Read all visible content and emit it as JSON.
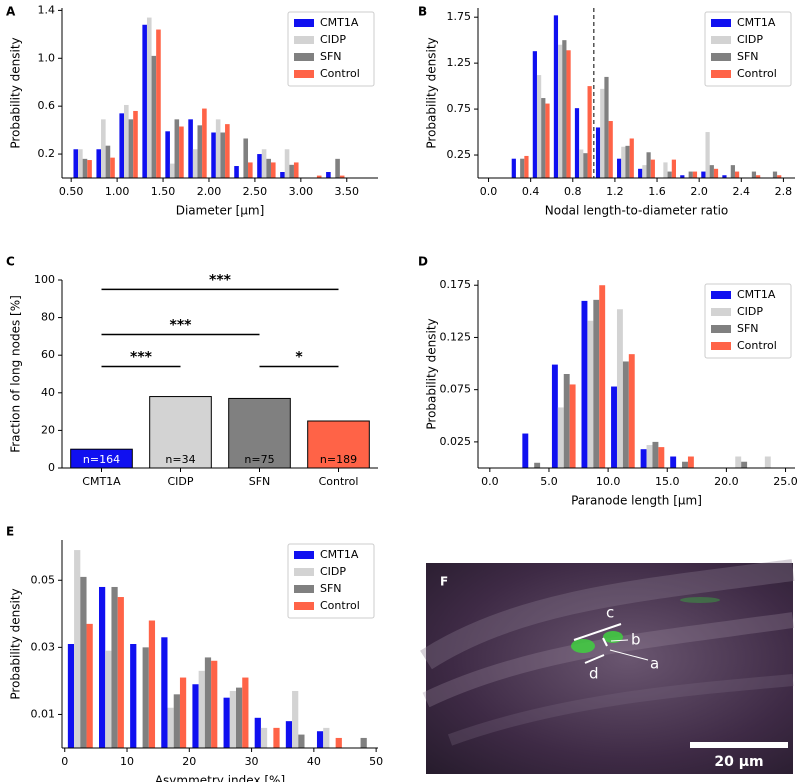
{
  "chart_data": [
    {
      "panel": "A",
      "type": "histogram",
      "xlabel": "Diameter [µm]",
      "ylabel": "Probability density",
      "legend": "upper right",
      "bins": [
        0.5,
        0.75,
        1.0,
        1.25,
        1.5,
        1.75,
        2.0,
        2.25,
        2.5,
        2.75,
        3.0,
        3.25,
        3.5
      ],
      "series": [
        {
          "name": "CMT1A",
          "color": "#1010f0",
          "values": [
            0.24,
            0.24,
            0.54,
            1.28,
            0.39,
            0.49,
            0.38,
            0.1,
            0.2,
            0.05,
            0.0,
            0.05
          ]
        },
        {
          "name": "CIDP",
          "color": "#d3d3d3",
          "values": [
            0.24,
            0.49,
            0.61,
            1.34,
            0.12,
            0.24,
            0.49,
            0.0,
            0.24,
            0.24,
            0.0,
            0.0
          ]
        },
        {
          "name": "SFN",
          "color": "#808080",
          "values": [
            0.16,
            0.27,
            0.49,
            1.02,
            0.49,
            0.44,
            0.38,
            0.33,
            0.16,
            0.11,
            0.0,
            0.16
          ]
        },
        {
          "name": "Control",
          "color": "#ff6347",
          "values": [
            0.15,
            0.17,
            0.56,
            1.24,
            0.43,
            0.58,
            0.45,
            0.13,
            0.13,
            0.13,
            0.02,
            0.02
          ]
        }
      ],
      "xlim": [
        0.4,
        3.84
      ],
      "ylim": [
        0,
        1.42
      ],
      "xticks": [
        {
          "value": 0.5,
          "label": "0.50"
        },
        {
          "value": 1.0,
          "label": "1.00"
        },
        {
          "value": 1.5,
          "label": "1.50"
        },
        {
          "value": 2.0,
          "label": "2.00"
        },
        {
          "value": 2.5,
          "label": "2.50"
        },
        {
          "value": 3.0,
          "label": "3.00"
        },
        {
          "value": 3.5,
          "label": "3.50"
        }
      ],
      "yticks": [
        0.2,
        0.6,
        {
          "value": 1.0,
          "label": "1.0"
        },
        1.4
      ]
    },
    {
      "panel": "B",
      "type": "histogram",
      "xlabel": "Nodal length-to-diameter ratio",
      "ylabel": "Probability density",
      "legend": "upper right",
      "vline": 1.0,
      "bins": [
        0.2,
        0.4,
        0.6,
        0.8,
        1.0,
        1.2,
        1.4,
        1.6,
        1.8,
        2.0,
        2.2,
        2.4,
        2.6,
        2.8
      ],
      "series": [
        {
          "name": "CMT1A",
          "color": "#1010f0",
          "values": [
            0.21,
            1.38,
            1.77,
            0.76,
            0.55,
            0.21,
            0.1,
            0.0,
            0.03,
            0.07,
            0.03,
            0.0,
            0.0
          ]
        },
        {
          "name": "CIDP",
          "color": "#d3d3d3",
          "values": [
            0.0,
            1.12,
            1.45,
            0.31,
            0.97,
            0.34,
            0.14,
            0.17,
            0.0,
            0.5,
            0.0,
            0.0,
            0.0
          ]
        },
        {
          "name": "SFN",
          "color": "#808080",
          "values": [
            0.21,
            0.87,
            1.5,
            0.27,
            1.1,
            0.35,
            0.28,
            0.07,
            0.07,
            0.14,
            0.14,
            0.07,
            0.07
          ]
        },
        {
          "name": "Control",
          "color": "#ff6347",
          "values": [
            0.24,
            0.81,
            1.39,
            1.0,
            0.62,
            0.43,
            0.2,
            0.2,
            0.07,
            0.1,
            0.07,
            0.03,
            0.03
          ]
        }
      ],
      "xlim": [
        -0.1,
        2.91
      ],
      "ylim": [
        0,
        1.85
      ],
      "xticks": [
        {
          "value": 0.0,
          "label": "0.0"
        },
        0.4,
        0.8,
        1.2,
        1.6,
        {
          "value": 2.0,
          "label": "2.0"
        },
        2.4,
        2.8
      ],
      "yticks": [
        0.25,
        0.75,
        1.25,
        1.75
      ]
    },
    {
      "panel": "C",
      "type": "bar",
      "ylabel": "Fraction of long nodes [%]",
      "categories": [
        "CMT1A",
        "CIDP",
        "SFN",
        "Control"
      ],
      "values": [
        10,
        38,
        37,
        25
      ],
      "colors": [
        "#1010f0",
        "#d3d3d3",
        "#808080",
        "#ff6347"
      ],
      "n_labels": [
        "n=164",
        "n=34",
        "n=75",
        "n=189"
      ],
      "annotations": [
        {
          "from": 0,
          "to": 3,
          "y": 95,
          "label": "***"
        },
        {
          "from": 0,
          "to": 2,
          "y": 71,
          "label": "***"
        },
        {
          "from": 0,
          "to": 1,
          "y": 54,
          "label": "***"
        },
        {
          "from": 2,
          "to": 3,
          "y": 54,
          "label": "*"
        }
      ],
      "ylim": [
        0,
        100
      ],
      "yticks": [
        0,
        20,
        40,
        60,
        80,
        100
      ]
    },
    {
      "panel": "D",
      "type": "histogram",
      "xlabel": "Paranode length [µm]",
      "ylabel": "Probability density",
      "legend": "upper right",
      "bins": [
        2.5,
        5.0,
        7.5,
        10.0,
        12.5,
        15.0,
        17.5,
        20.0,
        22.5,
        25.0
      ],
      "series": [
        {
          "name": "CMT1A",
          "color": "#1010f0",
          "values": [
            0.033,
            0.099,
            0.16,
            0.078,
            0.018,
            0.011,
            0.0,
            0.0,
            0.0
          ]
        },
        {
          "name": "CIDP",
          "color": "#d3d3d3",
          "values": [
            0.0,
            0.058,
            0.141,
            0.152,
            0.022,
            0.0,
            0.0,
            0.011,
            0.011
          ]
        },
        {
          "name": "SFN",
          "color": "#808080",
          "values": [
            0.005,
            0.09,
            0.161,
            0.102,
            0.025,
            0.006,
            0.0,
            0.006,
            0.0
          ]
        },
        {
          "name": "Control",
          "color": "#ff6347",
          "values": [
            0.0,
            0.08,
            0.175,
            0.109,
            0.02,
            0.011,
            0.0,
            0.0,
            0.0
          ]
        }
      ],
      "xlim": [
        -1.0,
        25.8
      ],
      "ylim": [
        0,
        0.18
      ],
      "xticks": [
        {
          "value": 0,
          "label": "0.0"
        },
        {
          "value": 5,
          "label": "5.0"
        },
        {
          "value": 10,
          "label": "10.0"
        },
        {
          "value": 15,
          "label": "15.0"
        },
        {
          "value": 20,
          "label": "20.0"
        },
        {
          "value": 25,
          "label": "25.0"
        }
      ],
      "yticks": [
        0.025,
        0.075,
        0.125,
        0.175
      ]
    },
    {
      "panel": "E",
      "type": "histogram",
      "xlabel": "Asymmetry index [%]",
      "ylabel": "Probability density",
      "legend": "upper right",
      "bins": [
        0,
        5,
        10,
        15,
        20,
        25,
        30,
        35,
        40,
        45,
        50
      ],
      "series": [
        {
          "name": "CMT1A",
          "color": "#1010f0",
          "values": [
            0.031,
            0.048,
            0.031,
            0.033,
            0.019,
            0.015,
            0.009,
            0.008,
            0.005,
            0.0
          ]
        },
        {
          "name": "CIDP",
          "color": "#d3d3d3",
          "values": [
            0.059,
            0.029,
            0.0,
            0.012,
            0.023,
            0.017,
            0.006,
            0.017,
            0.006,
            0.0
          ]
        },
        {
          "name": "SFN",
          "color": "#808080",
          "values": [
            0.051,
            0.048,
            0.03,
            0.016,
            0.027,
            0.018,
            0.0,
            0.004,
            0.0,
            0.003
          ]
        },
        {
          "name": "Control",
          "color": "#ff6347",
          "values": [
            0.037,
            0.045,
            0.038,
            0.021,
            0.026,
            0.021,
            0.006,
            0.0,
            0.003,
            0.0
          ]
        }
      ],
      "xlim": [
        -0.44,
        50.3
      ],
      "ylim": [
        0,
        0.062
      ],
      "xticks": [
        0,
        10,
        20,
        30,
        40,
        50
      ],
      "yticks": [
        0.01,
        0.03,
        0.05
      ]
    }
  ],
  "image": {
    "panel": "F",
    "labels": [
      "c",
      "b",
      "a",
      "d"
    ],
    "scale_bar": "20 µm"
  }
}
